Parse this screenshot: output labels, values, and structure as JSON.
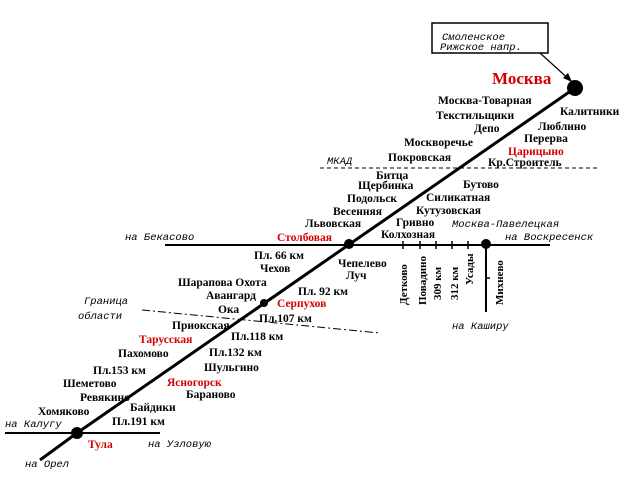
{
  "labels": [
    "Смоленское",
    "Рижское напр.",
    "Москва",
    "Москва-Товарная",
    "Калитники",
    "Текстильщики",
    "Люблино",
    "Депо",
    "Перерва",
    "Москворечье",
    "Царицыно",
    "МКАД",
    "Покровская",
    "Кр.Строитель",
    "Битца",
    "Бутово",
    "Щербинка",
    "Силикатная",
    "Подольск",
    "Весенняя",
    "Кутузовская",
    "Москва-Павелецкая",
    "Львовская",
    "Гривно",
    "на Бекасово",
    "Столбовая",
    "Колхозная",
    "на Воскресенск",
    "Пл. 66 км",
    "Чепелево",
    "Чехов",
    "Луч",
    "Шарапова Охота",
    "Пл. 92 км",
    "Авангард",
    "Серпухов",
    "Ока",
    "Граница",
    "области",
    "Пл.107 км",
    "Приокская",
    "Тарусская",
    "Пл.118 км",
    "Пахомово",
    "Пл.132 км",
    "Шульгино",
    "Пл.153 км",
    "Ясногорск",
    "Шеметово",
    "Бараново",
    "Ревякино",
    "Байдики",
    "Хомяково",
    "Пл.191 км",
    "на Калугу",
    "Тула",
    "на Узловую",
    "на Орел",
    "Детково",
    "Повадино",
    "309 км",
    "312 км",
    "Усады",
    "Михнево",
    "на Каширу"
  ]
}
